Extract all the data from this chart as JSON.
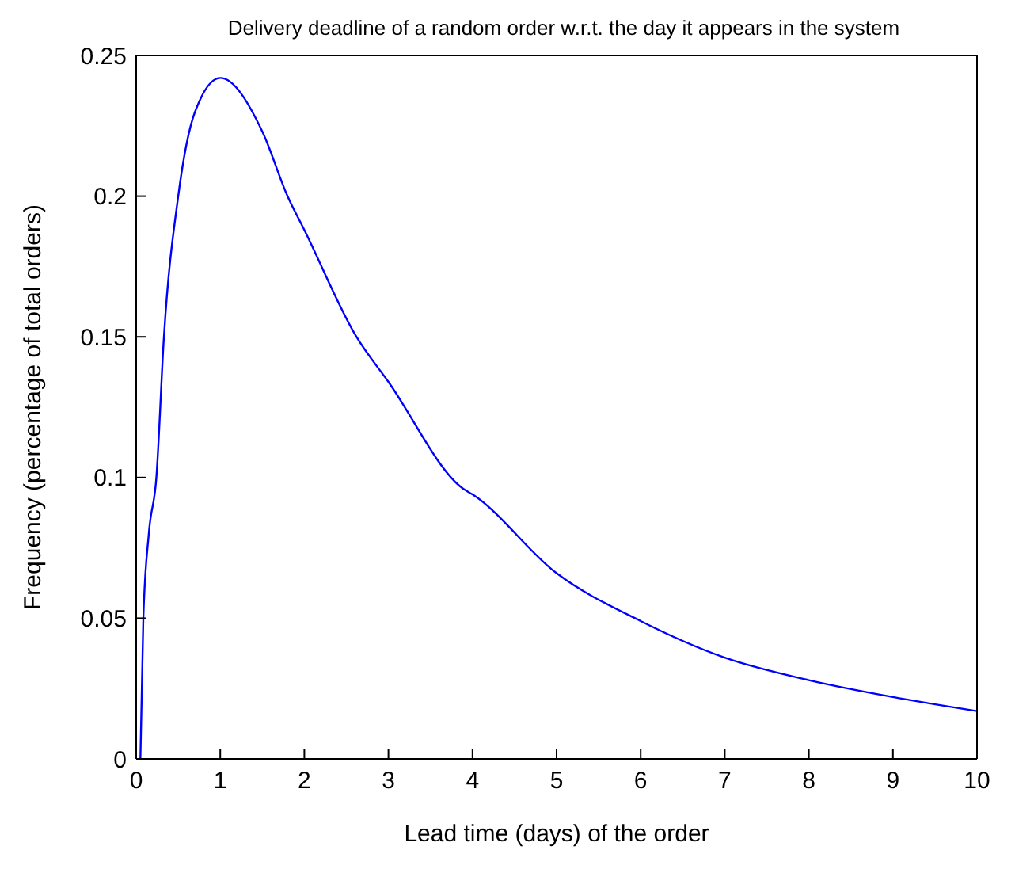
{
  "chart_data": {
    "type": "line",
    "title": "Delivery deadline of a random order w.r.t. the day it appears in the system",
    "xlabel": "Lead time (days) of the order",
    "ylabel": "Frequency (percentage of total orders)",
    "x": [
      0.05,
      0.085,
      0.15,
      0.24,
      0.33,
      0.5,
      0.7,
      1.0,
      1.5,
      1.8,
      2.0,
      2.62,
      3.0,
      3.89,
      4.0,
      5.0,
      6.0,
      7.0,
      8.0,
      9.0,
      10.0
    ],
    "series": [
      {
        "color": "#0000ff",
        "values": [
          0.0,
          0.05,
          0.08,
          0.1,
          0.15,
          0.2,
          0.23,
          0.242,
          0.223,
          0.2,
          0.188,
          0.15,
          0.134,
          0.096,
          0.094,
          0.066,
          0.049,
          0.036,
          0.028,
          0.022,
          0.017
        ]
      }
    ],
    "xlim": [
      0,
      10
    ],
    "xticks": [
      0,
      1,
      2,
      3,
      4,
      5,
      6,
      7,
      8,
      9,
      10
    ],
    "ylim": [
      0,
      0.25
    ],
    "yticks": [
      0,
      0.05,
      0.1,
      0.15,
      0.2,
      0.25
    ],
    "grid": false,
    "marker": "none",
    "line_style": "solid"
  }
}
